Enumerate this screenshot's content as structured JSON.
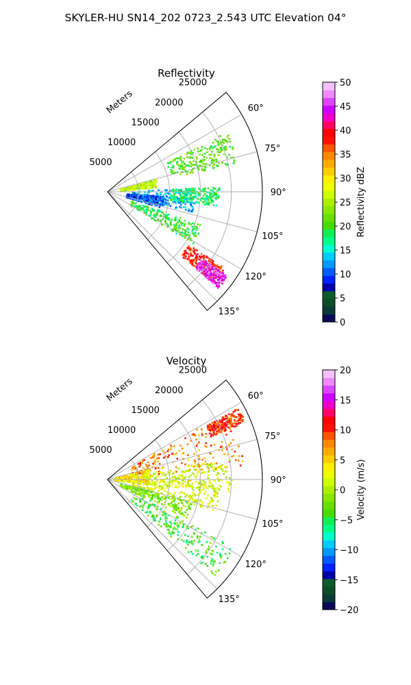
{
  "figure_title": "SKYLER-HU  SN14_202  0723_2.543 UTC Elevation 04°",
  "chart_data": [
    {
      "type": "polar-sector",
      "title": "Reflectivity",
      "radial_label": "Meters",
      "radial_ticks": [
        5000,
        10000,
        15000,
        20000,
        25000
      ],
      "radial_tick_labels": [
        "5000",
        "10000",
        "15000",
        "20000",
        "25000"
      ],
      "rlim": [
        0,
        25000
      ],
      "azimuth_range_deg": [
        50,
        140
      ],
      "azimuth_ticks_deg": [
        60,
        75,
        90,
        105,
        120,
        135
      ],
      "azimuth_tick_labels": [
        "60°",
        "75°",
        "90°",
        "105°",
        "120°",
        "135°"
      ],
      "grid": true,
      "colorbar": {
        "label": "Reflectivity dBZ",
        "range": [
          0,
          50
        ],
        "ticks": [
          0,
          5,
          10,
          15,
          20,
          25,
          30,
          35,
          40,
          45,
          50
        ],
        "tick_labels": [
          "0",
          "5",
          "10",
          "15",
          "20",
          "25",
          "30",
          "35",
          "40",
          "45",
          "50"
        ],
        "colors": [
          "#0b0b55",
          "#0b3a3a",
          "#0d4d2a",
          "#0c5c2c",
          "#0000aa",
          "#0022ff",
          "#005cff",
          "#0099ff",
          "#00ccff",
          "#00ffcc",
          "#00ff88",
          "#11ee55",
          "#44dd00",
          "#66e000",
          "#88e800",
          "#aaf000",
          "#ccff00",
          "#eeff00",
          "#ffee00",
          "#ffcc00",
          "#ffaa00",
          "#ff8800",
          "#ff5500",
          "#ff1100",
          "#ff0000",
          "#ff0066",
          "#ee00cc",
          "#cc00ff",
          "#dd44ff",
          "#ee88ff",
          "#f5c0ff"
        ]
      },
      "echo_cells": [
        {
          "az": 95,
          "r": 9000,
          "dr": 5200,
          "daz": 8,
          "value": 13
        },
        {
          "az": 70,
          "r": 16000,
          "dr": 5500,
          "daz": 7,
          "value": 21
        },
        {
          "az": 92,
          "r": 14000,
          "dr": 4000,
          "daz": 5,
          "value": 18
        },
        {
          "az": 100,
          "r": 6000,
          "dr": 3000,
          "daz": 6,
          "value": 10
        },
        {
          "az": 115,
          "r": 10000,
          "dr": 6000,
          "daz": 6,
          "value": 19
        },
        {
          "az": 127,
          "r": 19000,
          "dr": 3500,
          "daz": 4,
          "value": 38
        },
        {
          "az": 128,
          "r": 21000,
          "dr": 2500,
          "daz": 3,
          "value": 45
        },
        {
          "az": 79,
          "r": 5000,
          "dr": 3000,
          "daz": 5,
          "value": 26
        }
      ]
    },
    {
      "type": "polar-sector",
      "title": "Velocity",
      "radial_label": "Meters",
      "radial_ticks": [
        5000,
        10000,
        15000,
        20000,
        25000
      ],
      "radial_tick_labels": [
        "5000",
        "10000",
        "15000",
        "20000",
        "25000"
      ],
      "rlim": [
        0,
        25000
      ],
      "azimuth_range_deg": [
        50,
        140
      ],
      "azimuth_ticks_deg": [
        60,
        75,
        90,
        105,
        120,
        135
      ],
      "azimuth_tick_labels": [
        "60°",
        "75°",
        "90°",
        "105°",
        "120°",
        "135°"
      ],
      "grid": true,
      "colorbar": {
        "label": "Velocity (m/s)",
        "range": [
          -20,
          20
        ],
        "ticks": [
          -20,
          -15,
          -10,
          -5,
          0,
          5,
          10,
          15,
          20
        ],
        "tick_labels": [
          "−20",
          "−15",
          "−10",
          "−5",
          "0",
          "5",
          "10",
          "15",
          "20"
        ],
        "colors": [
          "#0b0b55",
          "#0b3a3a",
          "#0d4d2a",
          "#0c5c2c",
          "#0000aa",
          "#0022ff",
          "#005cff",
          "#0099ff",
          "#00ccff",
          "#00ffcc",
          "#00ff88",
          "#11ee55",
          "#44dd00",
          "#66e000",
          "#88e800",
          "#aaf000",
          "#ccff00",
          "#eeff00",
          "#ffee00",
          "#ffcc00",
          "#ffaa00",
          "#ff8800",
          "#ff5500",
          "#ff1100",
          "#ff0000",
          "#ff0066",
          "#ee00cc",
          "#cc00ff",
          "#dd44ff",
          "#ee88ff",
          "#f5c0ff"
        ]
      },
      "echo_cells": [
        {
          "az": 72,
          "r": 13000,
          "dr": 9000,
          "daz": 12,
          "value": 8
        },
        {
          "az": 88,
          "r": 12000,
          "dr": 8000,
          "daz": 8,
          "value": 1
        },
        {
          "az": 98,
          "r": 11000,
          "dr": 7000,
          "daz": 8,
          "value": 2
        },
        {
          "az": 110,
          "r": 8000,
          "dr": 6000,
          "daz": 6,
          "value": -2
        },
        {
          "az": 125,
          "r": 14000,
          "dr": 9000,
          "daz": 7,
          "value": -4
        },
        {
          "az": 85,
          "r": 4000,
          "dr": 3000,
          "daz": 10,
          "value": 4
        },
        {
          "az": 64,
          "r": 21000,
          "dr": 3000,
          "daz": 3,
          "value": 10
        }
      ]
    }
  ]
}
